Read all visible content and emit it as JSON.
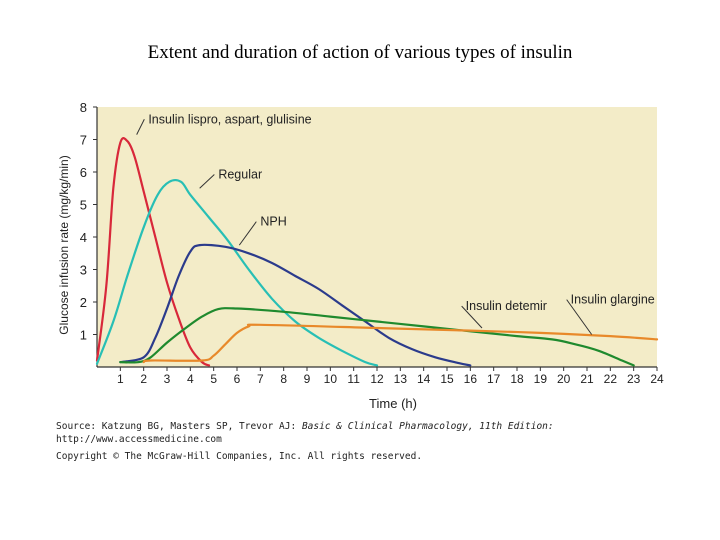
{
  "title": "Extent and duration of action of various types of insulin",
  "source": {
    "prefix": "Source: Katzung BG, Masters SP, Trevor AJ: ",
    "book": "Basic & Clinical Pharmacology, 11th Edition:",
    "url": " http://www.accessmedicine.com"
  },
  "copyright": "Copyright © The McGraw-Hill Companies, Inc. All rights reserved.",
  "chart_data": {
    "type": "line",
    "xlabel": "Time (h)",
    "ylabel": "Glucose infusion rate (mg/kg/min)",
    "xlim": [
      0,
      24
    ],
    "ylim": [
      0,
      8
    ],
    "x_ticks": [
      1,
      2,
      3,
      4,
      5,
      6,
      7,
      8,
      9,
      10,
      11,
      12,
      13,
      14,
      15,
      16,
      17,
      18,
      19,
      20,
      21,
      22,
      23,
      24
    ],
    "y_ticks": [
      1,
      2,
      3,
      4,
      5,
      6,
      7,
      8
    ],
    "background_color": "#f3ecc8",
    "series": [
      {
        "name": "Insulin lispro, aspart, glulisine",
        "color": "#d8283a",
        "points": [
          [
            0,
            0.2
          ],
          [
            0.4,
            2.5
          ],
          [
            0.7,
            5.5
          ],
          [
            1,
            6.9
          ],
          [
            1.3,
            6.95
          ],
          [
            1.6,
            6.5
          ],
          [
            2,
            5.4
          ],
          [
            2.5,
            4.0
          ],
          [
            3,
            2.6
          ],
          [
            3.5,
            1.5
          ],
          [
            4,
            0.6
          ],
          [
            4.5,
            0.15
          ],
          [
            4.8,
            0.05
          ]
        ]
      },
      {
        "name": "Regular",
        "color": "#28bfb5",
        "points": [
          [
            0,
            0.1
          ],
          [
            0.7,
            1.4
          ],
          [
            1.3,
            2.8
          ],
          [
            2,
            4.3
          ],
          [
            2.6,
            5.3
          ],
          [
            3.1,
            5.7
          ],
          [
            3.6,
            5.7
          ],
          [
            4,
            5.3
          ],
          [
            4.8,
            4.6
          ],
          [
            5.6,
            3.9
          ],
          [
            6.5,
            3.0
          ],
          [
            7.5,
            2.1
          ],
          [
            8.5,
            1.4
          ],
          [
            9.5,
            0.9
          ],
          [
            10.5,
            0.5
          ],
          [
            11.5,
            0.15
          ],
          [
            12,
            0.05
          ]
        ]
      },
      {
        "name": "NPH",
        "color": "#2b3b8c",
        "points": [
          [
            1,
            0.15
          ],
          [
            2,
            0.3
          ],
          [
            2.5,
            0.9
          ],
          [
            3,
            1.8
          ],
          [
            3.5,
            2.8
          ],
          [
            4,
            3.55
          ],
          [
            4.4,
            3.75
          ],
          [
            5.5,
            3.7
          ],
          [
            6.5,
            3.5
          ],
          [
            7.5,
            3.2
          ],
          [
            8.5,
            2.8
          ],
          [
            9.5,
            2.4
          ],
          [
            10.5,
            1.9
          ],
          [
            11.5,
            1.4
          ],
          [
            12.5,
            0.9
          ],
          [
            13.5,
            0.55
          ],
          [
            14.5,
            0.3
          ],
          [
            15.5,
            0.12
          ],
          [
            16,
            0.05
          ]
        ]
      },
      {
        "name": "Insulin detemir",
        "color": "#1f8a2e",
        "points": [
          [
            1,
            0.15
          ],
          [
            1.8,
            0.15
          ],
          [
            2.3,
            0.3
          ],
          [
            3,
            0.75
          ],
          [
            3.8,
            1.2
          ],
          [
            4.5,
            1.55
          ],
          [
            5.2,
            1.78
          ],
          [
            6,
            1.8
          ],
          [
            8,
            1.7
          ],
          [
            10,
            1.55
          ],
          [
            12,
            1.4
          ],
          [
            14,
            1.25
          ],
          [
            16,
            1.1
          ],
          [
            18,
            0.95
          ],
          [
            19.5,
            0.85
          ],
          [
            20.5,
            0.7
          ],
          [
            21.5,
            0.5
          ],
          [
            22.5,
            0.2
          ],
          [
            23,
            0.05
          ]
        ]
      },
      {
        "name": "Insulin glargine",
        "color": "#e8892a",
        "points": [
          [
            2,
            0.15
          ],
          [
            2.3,
            0.2
          ],
          [
            4.5,
            0.2
          ],
          [
            5,
            0.35
          ],
          [
            5.5,
            0.7
          ],
          [
            6,
            1.05
          ],
          [
            6.5,
            1.25
          ],
          [
            7,
            1.3
          ],
          [
            12,
            1.2
          ],
          [
            16,
            1.12
          ],
          [
            19,
            1.05
          ],
          [
            22,
            0.95
          ],
          [
            24,
            0.85
          ]
        ]
      }
    ],
    "annotations": [
      {
        "text": "Insulin lispro, aspart, glulisine",
        "series": 0,
        "at": [
          2.2,
          7.5
        ],
        "tip": [
          1.7,
          7.15
        ]
      },
      {
        "text": "Regular",
        "series": 1,
        "at": [
          5.2,
          5.8
        ],
        "tip": [
          4.4,
          5.5
        ]
      },
      {
        "text": "NPH",
        "series": 2,
        "at": [
          7.0,
          4.35
        ],
        "tip": [
          6.1,
          3.75
        ]
      },
      {
        "text": "Insulin detemir",
        "series": 3,
        "at": [
          15.8,
          1.75
        ],
        "tip": [
          16.5,
          1.2
        ]
      },
      {
        "text": "Insulin glargine",
        "series": 4,
        "at": [
          20.3,
          1.95
        ],
        "tip": [
          21.2,
          1.0
        ]
      }
    ]
  }
}
